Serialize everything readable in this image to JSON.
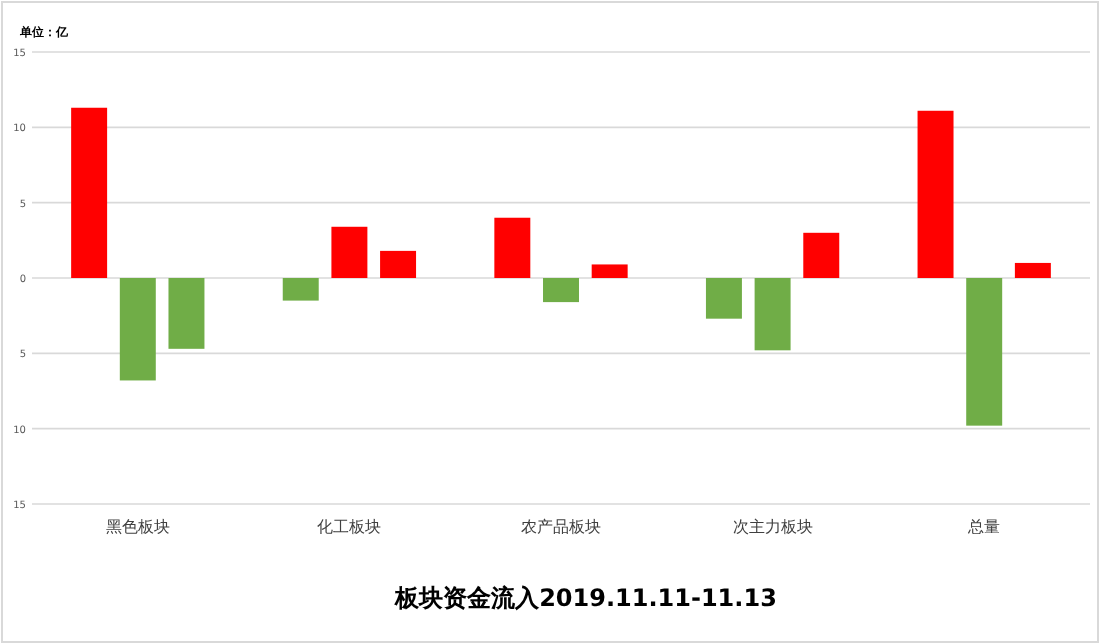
{
  "chart_data": {
    "type": "bar",
    "title": "板块资金流入2019.11.11-11.13",
    "annotations": [
      "单位：亿"
    ],
    "categories": [
      "黑色板块",
      "化工板块",
      "农产品板块",
      "次主力板块",
      "总量"
    ],
    "series": [
      {
        "values": [
          11.3,
          -1.5,
          4.0,
          -2.7,
          11.1
        ],
        "colors": [
          "#ff0000",
          "#70ad47",
          "#ff0000",
          "#70ad47",
          "#ff0000"
        ]
      },
      {
        "values": [
          -6.8,
          3.4,
          -1.6,
          -4.8,
          -9.8
        ],
        "colors": [
          "#70ad47",
          "#ff0000",
          "#70ad47",
          "#70ad47",
          "#70ad47"
        ]
      },
      {
        "values": [
          -4.7,
          1.8,
          0.9,
          3.0,
          1.0
        ],
        "colors": [
          "#70ad47",
          "#ff0000",
          "#ff0000",
          "#ff0000",
          "#ff0000"
        ]
      }
    ],
    "ylim": [
      -15,
      15
    ],
    "yticks": [
      {
        "value": -15,
        "label": "15"
      },
      {
        "value": -10,
        "label": "10"
      },
      {
        "value": -5,
        "label": "5"
      },
      0,
      5,
      10,
      15
    ],
    "grid": "y"
  }
}
